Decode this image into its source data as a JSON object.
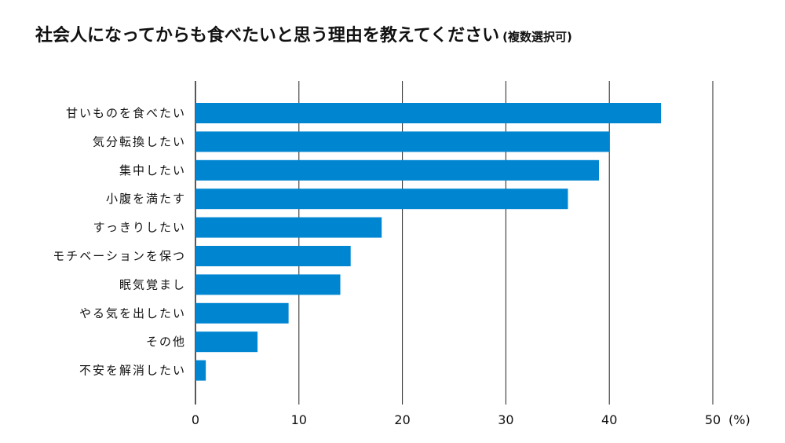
{
  "chart_data": {
    "type": "bar",
    "orientation": "horizontal",
    "title": "社会人になってからも食べたいと思う理由を教えてください",
    "subtitle": "(複数選択可)",
    "categories": [
      "甘いものを食べたい",
      "気分転換したい",
      "集中したい",
      "小腹を満たす",
      "すっきりしたい",
      "モチベーションを保つ",
      "眠気覚まし",
      "やる気を出したい",
      "その他",
      "不安を解消したい"
    ],
    "values": [
      45,
      40,
      39,
      36,
      18,
      15,
      14,
      9,
      6,
      1
    ],
    "xlabel": "",
    "ylabel": "",
    "unit_label": "(%)",
    "xlim": [
      0,
      50
    ],
    "ticks": [
      "0",
      "10",
      "20",
      "30",
      "40",
      "50"
    ],
    "grid": true,
    "bar_color": "#0086d1"
  }
}
